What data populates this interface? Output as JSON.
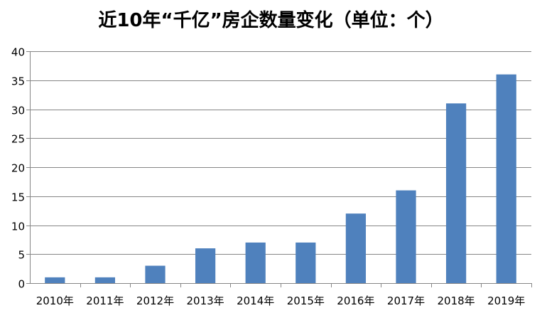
{
  "chart_data": {
    "type": "bar",
    "title": "近10年“千亿”房企数量变化（单位：个）",
    "categories": [
      "2010年",
      "2011年",
      "2012年",
      "2013年",
      "2014年",
      "2015年",
      "2016年",
      "2017年",
      "2018年",
      "2019年"
    ],
    "values": [
      1,
      1,
      3,
      6,
      7,
      7,
      12,
      16,
      31,
      36
    ],
    "xlabel": "",
    "ylabel": "",
    "ylim": [
      0,
      40
    ],
    "yticks": [
      "0",
      "5",
      "10",
      "15",
      "20",
      "25",
      "30",
      "35",
      "40"
    ],
    "grid": true,
    "legend": "none",
    "colors": {
      "bar": "#4f81bd",
      "grid": "#868686",
      "axis": "#868686"
    }
  }
}
